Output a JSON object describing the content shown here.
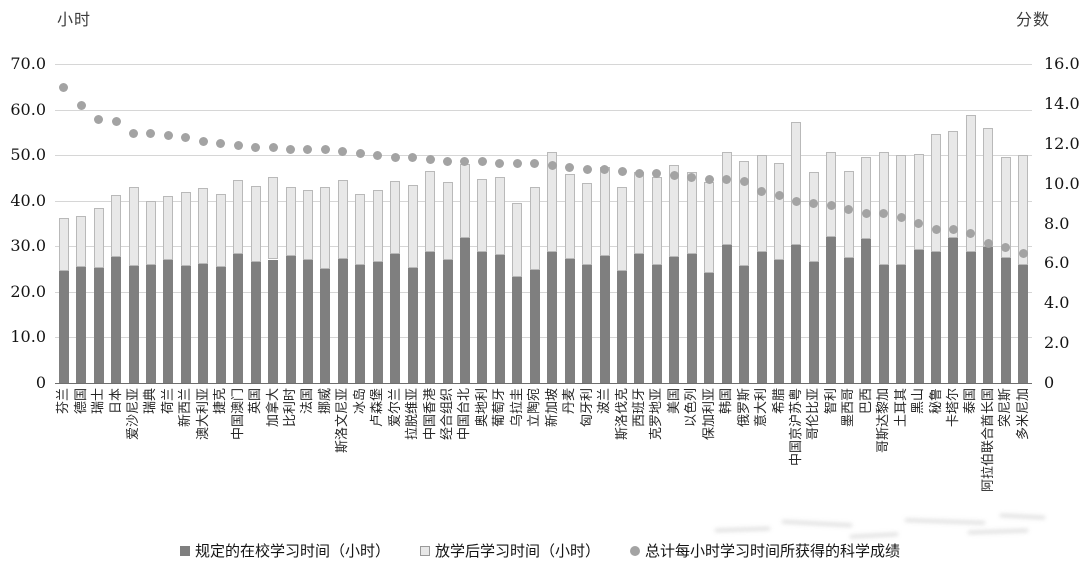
{
  "chart_data": {
    "type": "combo",
    "title": "",
    "grid": true,
    "legend_position": "bottom",
    "left_axis": {
      "title": "小时",
      "max": 70,
      "min": 0,
      "ticks": [
        "70.0",
        "60.0",
        "50.0",
        "40.0",
        "30.0",
        "20.0",
        "10.0",
        "0"
      ]
    },
    "right_axis": {
      "title": "分数",
      "max": 16,
      "min": 0,
      "ticks": [
        "16.0",
        "14.0",
        "12.0",
        "10.0",
        "8.0",
        "6.0",
        "4.0",
        "2.0",
        "0"
      ]
    },
    "categories": [
      "芬兰",
      "德国",
      "瑞士",
      "日本",
      "爱沙尼亚",
      "瑞典",
      "荷兰",
      "新西兰",
      "澳大利亚",
      "捷克",
      "中国澳门",
      "英国",
      "加拿大",
      "比利时",
      "法国",
      "挪威",
      "斯洛文尼亚",
      "冰岛",
      "卢森堡",
      "爱尔兰",
      "拉脱维亚",
      "中国香港",
      "经合组织",
      "中国台北",
      "奥地利",
      "葡萄牙",
      "乌拉圭",
      "立陶宛",
      "新加坡",
      "丹麦",
      "匈牙利",
      "波兰",
      "斯洛伐克",
      "西班牙",
      "克罗地亚",
      "美国",
      "以色列",
      "保加利亚",
      "韩国",
      "俄罗斯",
      "意大利",
      "希腊",
      "中国京沪苏粤",
      "哥伦比亚",
      "智利",
      "墨西哥",
      "巴西",
      "哥斯达黎加",
      "土耳其",
      "黑山",
      "秘鲁",
      "卡塔尔",
      "泰国",
      "阿拉伯联合酋长国",
      "突尼斯",
      "多米尼加"
    ],
    "series": [
      {
        "name": "规定的在校学习时间（小时）",
        "type": "bar",
        "stack": "study",
        "axis": "left",
        "color": "#7f7f7f",
        "values": [
          24.5,
          25.5,
          25.3,
          27.6,
          25.6,
          26.0,
          26.9,
          25.6,
          26.2,
          25.5,
          28.4,
          26.5,
          27.1,
          27.8,
          26.9,
          25.1,
          27.3,
          26.0,
          26.6,
          28.4,
          25.3,
          28.8,
          26.9,
          31.9,
          28.8,
          28.0,
          23.2,
          24.7,
          28.7,
          27.3,
          26.0,
          27.8,
          24.5,
          28.2,
          26.0,
          27.7,
          28.4,
          24.1,
          30.2,
          25.6,
          28.7,
          26.9,
          30.2,
          26.6,
          32.1,
          27.5,
          31.6,
          25.8,
          26.0,
          29.1,
          28.7,
          31.9,
          28.7,
          29.8,
          27.4,
          25.8
        ]
      },
      {
        "name": "放学后学习时间（小时）",
        "type": "bar",
        "stack": "study",
        "axis": "left",
        "color": "#e8e8e8",
        "values": [
          11.6,
          11.1,
          13.2,
          13.6,
          17.4,
          13.9,
          14.1,
          16.4,
          16.5,
          15.9,
          16.1,
          16.7,
          18.2,
          15.3,
          15.5,
          17.8,
          17.2,
          15.4,
          15.7,
          15.9,
          18.1,
          17.7,
          17.1,
          16.1,
          15.9,
          17.3,
          16.3,
          18.3,
          22.0,
          18.5,
          17.8,
          19.7,
          18.4,
          18.0,
          19.2,
          20.1,
          17.8,
          19.9,
          20.4,
          23.1,
          21.3,
          21.4,
          27.0,
          19.8,
          18.6,
          19.0,
          18.1,
          24.8,
          24.0,
          21.1,
          25.9,
          23.5,
          30.0,
          26.2,
          22.3,
          24.2
        ]
      },
      {
        "name": "总计每小时学习时间所获得的科学成绩",
        "type": "scatter",
        "axis": "right",
        "color": "#a3a3a3",
        "values": [
          14.8,
          13.9,
          13.2,
          13.1,
          12.5,
          12.5,
          12.4,
          12.3,
          12.1,
          12.0,
          11.9,
          11.8,
          11.8,
          11.7,
          11.7,
          11.7,
          11.6,
          11.5,
          11.4,
          11.3,
          11.3,
          11.2,
          11.1,
          11.1,
          11.1,
          11.0,
          11.0,
          11.0,
          10.9,
          10.8,
          10.7,
          10.7,
          10.6,
          10.5,
          10.5,
          10.4,
          10.3,
          10.2,
          10.2,
          10.1,
          9.6,
          9.4,
          9.1,
          9.0,
          8.9,
          8.7,
          8.5,
          8.5,
          8.3,
          8.0,
          7.7,
          7.7,
          7.5,
          7.0,
          6.8,
          6.5
        ]
      }
    ]
  }
}
